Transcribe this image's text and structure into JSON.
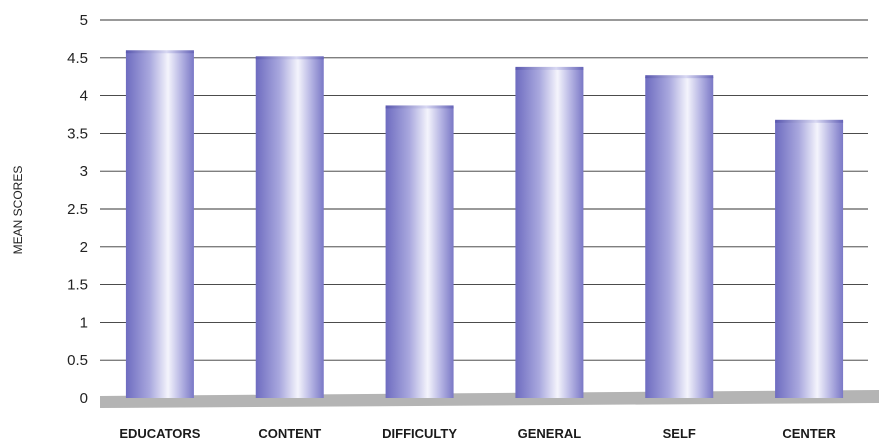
{
  "chart_data": {
    "type": "bar",
    "title": "",
    "xlabel": "",
    "ylabel": "MEAN SCORES",
    "ylim": [
      0,
      5
    ],
    "yticks": [
      "0",
      "0.5",
      "1",
      "1.5",
      "2",
      "2.5",
      "3",
      "3.5",
      "4",
      "4.5",
      "5"
    ],
    "categories": [
      "EDUCATORS",
      "CONTENT",
      "DIFFICULTY",
      "GENERAL",
      "SELF",
      "CENTER"
    ],
    "values": [
      4.58,
      4.5,
      3.85,
      4.36,
      4.25,
      3.66
    ],
    "grid": true,
    "colors": {
      "bar_dark": "#6e6cc0",
      "bar_light": "#f4f4fc",
      "floor": "#b4b4b4",
      "grid": "#333333"
    }
  }
}
